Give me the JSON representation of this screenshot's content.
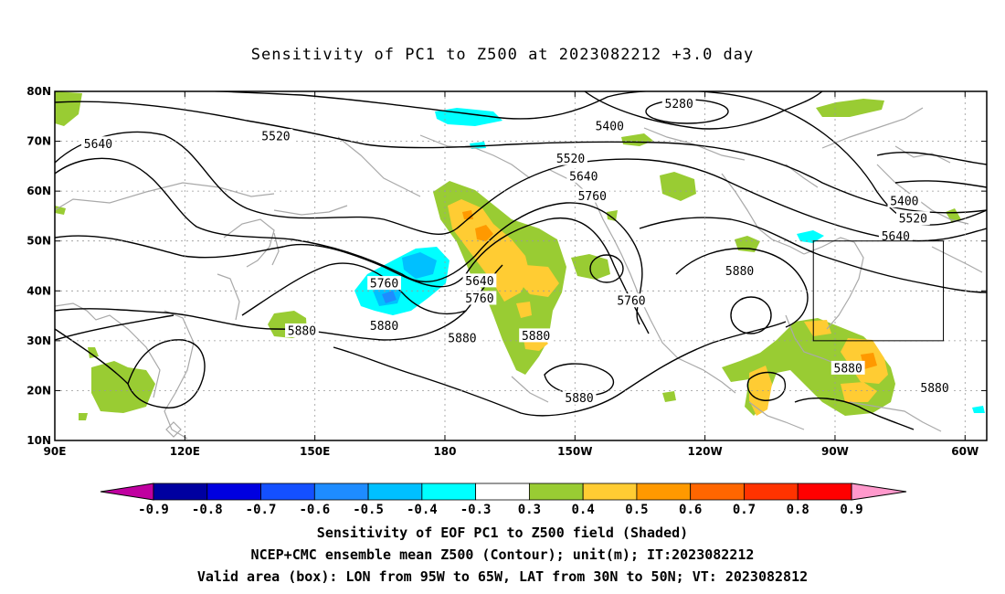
{
  "title": "Sensitivity of PC1 to Z500 at 2023082212 +3.0 day",
  "map": {
    "lon_range": [
      90,
      305
    ],
    "lat_range": [
      10,
      80
    ],
    "lon_ticks": [
      "90E",
      "120E",
      "150E",
      "180",
      "150W",
      "120W",
      "90W",
      "60W"
    ],
    "lat_ticks": [
      "10N",
      "20N",
      "30N",
      "40N",
      "50N",
      "60N",
      "70N",
      "80N"
    ],
    "grid": true,
    "valid_box": {
      "lon_west": 265,
      "lon_east": 295,
      "lat_south": 30,
      "lat_north": 50
    },
    "contour_labels": [
      {
        "text": "5280",
        "lon": 234,
        "lat": 77.5
      },
      {
        "text": "5400",
        "lon": 218,
        "lat": 73
      },
      {
        "text": "5400",
        "lon": 286,
        "lat": 58
      },
      {
        "text": "5520",
        "lon": 141,
        "lat": 71
      },
      {
        "text": "5520",
        "lon": 209,
        "lat": 66.5
      },
      {
        "text": "5520",
        "lon": 288,
        "lat": 54.5
      },
      {
        "text": "5640",
        "lon": 100,
        "lat": 69.5
      },
      {
        "text": "5640",
        "lon": 212,
        "lat": 63
      },
      {
        "text": "5640",
        "lon": 284,
        "lat": 51
      },
      {
        "text": "5640",
        "lon": 188,
        "lat": 42
      },
      {
        "text": "5760",
        "lon": 214,
        "lat": 59
      },
      {
        "text": "5760",
        "lon": 166,
        "lat": 41.5
      },
      {
        "text": "5760",
        "lon": 188,
        "lat": 38.5
      },
      {
        "text": "5760",
        "lon": 223,
        "lat": 38
      },
      {
        "text": "5880",
        "lon": 248,
        "lat": 44
      },
      {
        "text": "5880",
        "lon": 166,
        "lat": 33
      },
      {
        "text": "5880",
        "lon": 147,
        "lat": 32
      },
      {
        "text": "5880",
        "lon": 184,
        "lat": 30.5
      },
      {
        "text": "5880",
        "lon": 201,
        "lat": 31
      },
      {
        "text": "5880",
        "lon": 211,
        "lat": 18.5
      },
      {
        "text": "5880",
        "lon": 273,
        "lat": 24.5
      },
      {
        "text": "5880",
        "lon": 293,
        "lat": 20.5
      }
    ]
  },
  "colorbar": {
    "labels": [
      "-0.9",
      "-0.8",
      "-0.7",
      "-0.6",
      "-0.5",
      "-0.4",
      "-0.3",
      "0.3",
      "0.4",
      "0.5",
      "0.6",
      "0.7",
      "0.8",
      "0.9"
    ],
    "colors": [
      "#0000a0",
      "#0000e0",
      "#1450ff",
      "#1e8cff",
      "#00c0ff",
      "#00ffff",
      "#ffffff",
      "#99cc33",
      "#ffcc33",
      "#ff9900",
      "#ff6600",
      "#ff3300",
      "#ff0000"
    ],
    "low_end_color": "#c000a0",
    "high_end_color": "#ff99cc"
  },
  "footer": {
    "line1": "Sensitivity of EOF PC1 to Z500 field (Shaded)",
    "line2": "NCEP+CMC ensemble mean Z500 (Contour); unit(m); IT:2023082212",
    "line3": "Valid area (box): LON from 95W to 65W, LAT from 30N to 50N; VT: 2023082812"
  }
}
